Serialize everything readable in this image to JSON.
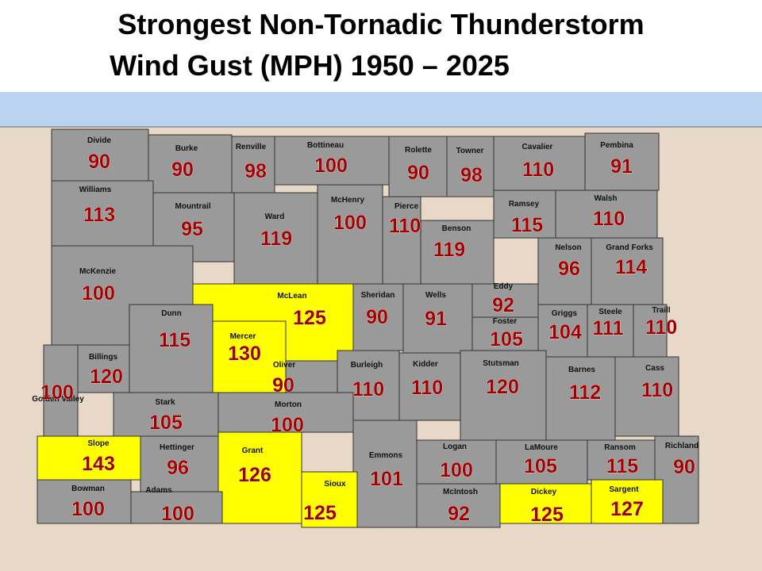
{
  "title": [
    "Strongest Non-Tornadic Thunderstorm",
    "Wind Gust (MPH) 1950 – 2025"
  ],
  "counties": [
    {
      "name": "Divide",
      "value": 90,
      "color": "#9a9a9a"
    },
    {
      "name": "Burke",
      "value": 90,
      "color": "#9a9a9a"
    },
    {
      "name": "Renville",
      "value": 98,
      "color": "#9a9a9a"
    },
    {
      "name": "Bottineau",
      "value": 100,
      "color": "#9a9a9a"
    },
    {
      "name": "Rolette",
      "value": 90,
      "color": "#9a9a9a"
    },
    {
      "name": "Towner",
      "value": 98,
      "color": "#9a9a9a"
    },
    {
      "name": "Cavalier",
      "value": 110,
      "color": "#9a9a9a"
    },
    {
      "name": "Pembina",
      "value": 91,
      "color": "#9a9a9a"
    },
    {
      "name": "Williams",
      "value": 113,
      "color": "#9a9a9a"
    },
    {
      "name": "Mountrail",
      "value": 95,
      "color": "#9a9a9a"
    },
    {
      "name": "Ward",
      "value": 119,
      "color": "#9a9a9a"
    },
    {
      "name": "McHenry",
      "value": 100,
      "color": "#9a9a9a"
    },
    {
      "name": "Pierce",
      "value": 110,
      "color": "#9a9a9a"
    },
    {
      "name": "Benson",
      "value": 119,
      "color": "#9a9a9a"
    },
    {
      "name": "Ramsey",
      "value": 115,
      "color": "#9a9a9a"
    },
    {
      "name": "Walsh",
      "value": 110,
      "color": "#9a9a9a"
    },
    {
      "name": "Nelson",
      "value": 96,
      "color": "#9a9a9a"
    },
    {
      "name": "Grand Forks",
      "value": 114,
      "color": "#9a9a9a"
    },
    {
      "name": "McKenzie",
      "value": 100,
      "color": "#9a9a9a"
    },
    {
      "name": "McLean",
      "value": 125,
      "color": "#ffff00"
    },
    {
      "name": "Sheridan",
      "value": 90,
      "color": "#9a9a9a"
    },
    {
      "name": "Wells",
      "value": 91,
      "color": "#9a9a9a"
    },
    {
      "name": "Eddy",
      "value": 92,
      "color": "#9a9a9a"
    },
    {
      "name": "Foster",
      "value": 105,
      "color": "#9a9a9a"
    },
    {
      "name": "Griggs",
      "value": 104,
      "color": "#9a9a9a"
    },
    {
      "name": "Steele",
      "value": 111,
      "color": "#9a9a9a"
    },
    {
      "name": "Traill",
      "value": 110,
      "color": "#9a9a9a"
    },
    {
      "name": "Dunn",
      "value": 115,
      "color": "#9a9a9a"
    },
    {
      "name": "Mercer",
      "value": 130,
      "color": "#ffff00"
    },
    {
      "name": "Billings",
      "value": 120,
      "color": "#9a9a9a"
    },
    {
      "name": "Golden Valley",
      "value": 100,
      "color": "#9a9a9a"
    },
    {
      "name": "Oliver",
      "value": 90,
      "color": "#9a9a9a"
    },
    {
      "name": "Burleigh",
      "value": 110,
      "color": "#9a9a9a"
    },
    {
      "name": "Kidder",
      "value": 110,
      "color": "#9a9a9a"
    },
    {
      "name": "Stutsman",
      "value": 120,
      "color": "#9a9a9a"
    },
    {
      "name": "Barnes",
      "value": 112,
      "color": "#9a9a9a"
    },
    {
      "name": "Cass",
      "value": 110,
      "color": "#9a9a9a"
    },
    {
      "name": "Stark",
      "value": 105,
      "color": "#9a9a9a"
    },
    {
      "name": "Morton",
      "value": 100,
      "color": "#9a9a9a"
    },
    {
      "name": "Slope",
      "value": 143,
      "color": "#ffff00"
    },
    {
      "name": "Hettinger",
      "value": 96,
      "color": "#9a9a9a"
    },
    {
      "name": "Grant",
      "value": 126,
      "color": "#ffff00"
    },
    {
      "name": "Emmons",
      "value": 101,
      "color": "#9a9a9a"
    },
    {
      "name": "Logan",
      "value": 100,
      "color": "#9a9a9a"
    },
    {
      "name": "LaMoure",
      "value": 105,
      "color": "#9a9a9a"
    },
    {
      "name": "Ransom",
      "value": 115,
      "color": "#9a9a9a"
    },
    {
      "name": "Richland",
      "value": 90,
      "color": "#9a9a9a"
    },
    {
      "name": "Bowman",
      "value": 100,
      "color": "#9a9a9a"
    },
    {
      "name": "Adams",
      "value": 100,
      "color": "#9a9a9a"
    },
    {
      "name": "Sioux",
      "value": 125,
      "color": "#ffff00"
    },
    {
      "name": "McIntosh",
      "value": 92,
      "color": "#9a9a9a"
    },
    {
      "name": "Dickey",
      "value": 125,
      "color": "#ffff00"
    },
    {
      "name": "Sargent",
      "value": 127,
      "color": "#ffff00"
    }
  ]
}
